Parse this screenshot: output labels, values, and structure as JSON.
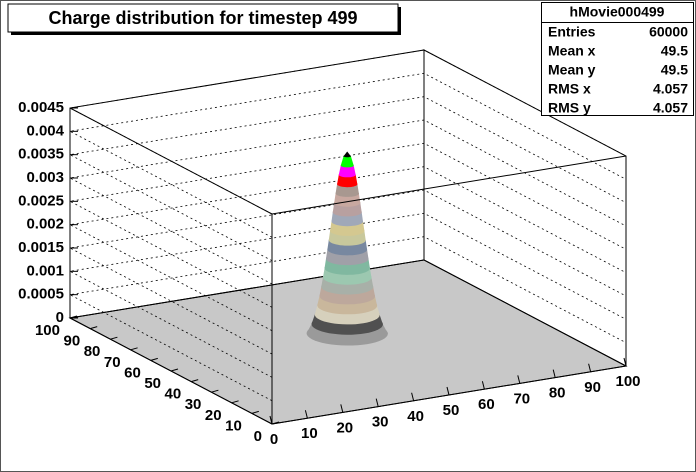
{
  "chart_data": {
    "type": "lego",
    "title": "Charge distribution for timestep 499",
    "stats": {
      "name": "hMovie000499",
      "rows": [
        {
          "label": "Entries",
          "value": 60000
        },
        {
          "label": "Mean x",
          "value": 49.5
        },
        {
          "label": "Mean y",
          "value": 49.5
        },
        {
          "label": "RMS x",
          "value": 4.057
        },
        {
          "label": "RMS y",
          "value": 4.057
        }
      ]
    },
    "xlim": [
      0,
      100
    ],
    "ylim": [
      0,
      100
    ],
    "zlim": [
      0,
      0.0045
    ],
    "xticks": [
      0,
      10,
      20,
      30,
      40,
      50,
      60,
      70,
      80,
      90,
      100
    ],
    "yticks": [
      0,
      10,
      20,
      30,
      40,
      50,
      60,
      70,
      80,
      90,
      100
    ],
    "zticks": [
      0,
      0.0005,
      0.001,
      0.0015,
      0.002,
      0.0025,
      0.003,
      0.0035,
      0.004,
      0.0045
    ],
    "grid": true,
    "peak": 0.0041,
    "levels": [
      {
        "value": 0.0002,
        "color": "#9a9a9a"
      },
      {
        "value": 0.0004,
        "color": "#505050"
      },
      {
        "value": 0.0006,
        "color": "#d6d0bc"
      },
      {
        "value": 0.0008,
        "color": "#c9b79c"
      },
      {
        "value": 0.001,
        "color": "#bda89c"
      },
      {
        "value": 0.0012,
        "color": "#a8b0a8"
      },
      {
        "value": 0.0014,
        "color": "#9cc8b0"
      },
      {
        "value": 0.0016,
        "color": "#80b8a0"
      },
      {
        "value": 0.0018,
        "color": "#a0a0a8"
      },
      {
        "value": 0.002,
        "color": "#7888a0"
      },
      {
        "value": 0.0022,
        "color": "#c8c89c"
      },
      {
        "value": 0.0024,
        "color": "#d4c890"
      },
      {
        "value": 0.0026,
        "color": "#a0a8b8"
      },
      {
        "value": 0.0028,
        "color": "#b8a0a0"
      },
      {
        "value": 0.003,
        "color": "#c8a8a0"
      },
      {
        "value": 0.0032,
        "color": "#a89890"
      },
      {
        "value": 0.0034,
        "color": "#ff0000"
      },
      {
        "value": 0.0036,
        "color": "#ff00ff"
      },
      {
        "value": 0.0038,
        "color": "#00ff00"
      },
      {
        "value": 0.004,
        "color": "#000000"
      }
    ]
  }
}
